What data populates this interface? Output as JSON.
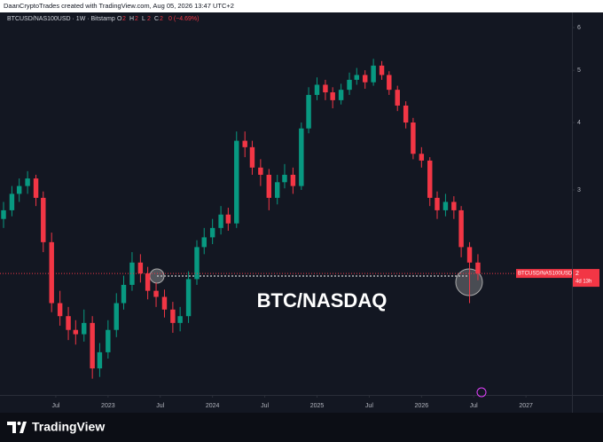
{
  "chart_data": {
    "type": "candlestick",
    "attribution": "DaanCryptoTrades created with TradingView.com, Aug 05, 2026 13:47 UTC+2",
    "legend_title": "BTCUSD/NAS100USD · 1W · Bitstamp",
    "ohlc_legend": [
      {
        "key": "O",
        "value": "2"
      },
      {
        "key": "H",
        "value": "2"
      },
      {
        "key": "L",
        "value": "2"
      },
      {
        "key": "C",
        "value": "2"
      }
    ],
    "change": "0 (−4.69%)",
    "annotation": "BTC/NASDAQ",
    "price_label": {
      "symbol": "BTCUSD/NAS100USD",
      "price": "2",
      "countdown": "4d 13h"
    },
    "brand": "TradingView",
    "log_scale": true,
    "grid": false,
    "up_color": "#089981",
    "down_color": "#f23645",
    "last_value": 2.1,
    "x": [
      2022.0,
      2022.08,
      2022.15,
      2022.23,
      2022.31,
      2022.38,
      2022.46,
      2022.54,
      2022.62,
      2022.69,
      2022.77,
      2022.85,
      2022.92,
      2023.0,
      2023.08,
      2023.15,
      2023.23,
      2023.31,
      2023.38,
      2023.46,
      2023.54,
      2023.62,
      2023.69,
      2023.77,
      2023.85,
      2023.92,
      2024.0,
      2024.08,
      2024.15,
      2024.23,
      2024.31,
      2024.38,
      2024.46,
      2024.54,
      2024.62,
      2024.69,
      2024.77,
      2024.85,
      2024.92,
      2025.0,
      2025.08,
      2025.15,
      2025.23,
      2025.31,
      2025.38,
      2025.46,
      2025.54,
      2025.62,
      2025.69,
      2025.77,
      2025.85,
      2025.92,
      2026.0,
      2026.08,
      2026.15,
      2026.23,
      2026.31,
      2026.38,
      2026.46,
      2026.54
    ],
    "open": [
      2.65,
      2.75,
      2.95,
      3.05,
      3.15,
      2.9,
      2.4,
      1.85,
      1.75,
      1.65,
      1.62,
      1.7,
      1.4,
      1.5,
      1.65,
      1.85,
      2.0,
      2.2,
      2.1,
      1.95,
      1.9,
      1.8,
      1.7,
      1.75,
      2.05,
      2.35,
      2.45,
      2.55,
      2.7,
      2.6,
      3.7,
      3.6,
      3.3,
      3.2,
      2.9,
      3.1,
      3.2,
      3.05,
      3.9,
      4.5,
      4.7,
      4.55,
      4.4,
      4.6,
      4.8,
      4.9,
      4.75,
      5.1,
      4.9,
      4.6,
      4.3,
      4.0,
      3.5,
      3.4,
      2.9,
      2.75,
      2.85,
      2.75,
      2.35,
      2.2
    ],
    "high": [
      2.85,
      3.05,
      3.15,
      3.25,
      3.2,
      2.98,
      2.5,
      1.95,
      1.82,
      1.72,
      1.8,
      1.75,
      1.56,
      1.72,
      1.93,
      2.08,
      2.3,
      2.28,
      2.16,
      2.02,
      1.96,
      1.86,
      1.82,
      2.12,
      2.42,
      2.55,
      2.65,
      2.8,
      2.78,
      3.85,
      3.85,
      3.7,
      3.42,
      3.28,
      3.2,
      3.35,
      3.3,
      4.0,
      4.65,
      4.85,
      4.8,
      4.65,
      4.72,
      4.95,
      5.05,
      5.0,
      5.25,
      5.2,
      4.98,
      4.68,
      4.38,
      4.08,
      3.6,
      3.45,
      2.98,
      2.95,
      2.92,
      2.8,
      2.4,
      2.28
    ],
    "low": [
      2.55,
      2.68,
      2.85,
      2.95,
      2.8,
      2.3,
      1.78,
      1.68,
      1.58,
      1.55,
      1.57,
      1.34,
      1.35,
      1.46,
      1.6,
      1.8,
      1.95,
      2.02,
      1.88,
      1.82,
      1.74,
      1.63,
      1.64,
      1.7,
      2.0,
      2.28,
      2.38,
      2.48,
      2.52,
      2.55,
      3.45,
      3.2,
      3.05,
      2.75,
      2.82,
      3.02,
      2.95,
      3.0,
      3.82,
      4.4,
      4.4,
      4.25,
      4.32,
      4.5,
      4.7,
      4.62,
      4.68,
      4.8,
      4.5,
      4.2,
      3.9,
      3.42,
      3.3,
      2.8,
      2.65,
      2.68,
      2.65,
      2.25,
      1.85,
      2.04
    ],
    "close": [
      2.75,
      2.95,
      3.05,
      3.15,
      2.9,
      2.4,
      1.85,
      1.75,
      1.65,
      1.62,
      1.7,
      1.4,
      1.5,
      1.65,
      1.85,
      2.0,
      2.2,
      2.1,
      1.95,
      1.9,
      1.8,
      1.7,
      1.75,
      2.05,
      2.35,
      2.45,
      2.55,
      2.7,
      2.6,
      3.7,
      3.6,
      3.3,
      3.2,
      2.9,
      3.1,
      3.2,
      3.05,
      3.9,
      4.5,
      4.7,
      4.55,
      4.4,
      4.6,
      4.8,
      4.9,
      4.75,
      5.1,
      4.9,
      4.6,
      4.3,
      4.0,
      3.5,
      3.4,
      2.9,
      2.75,
      2.85,
      2.75,
      2.35,
      2.2,
      2.1
    ],
    "xlim": [
      2021.966,
      2027.44
    ],
    "xticks": [
      {
        "value": 2022.5,
        "label": "Jul"
      },
      2023,
      {
        "value": 2023.5,
        "label": "Jul"
      },
      2024,
      {
        "value": 2024.5,
        "label": "Jul"
      },
      2025,
      {
        "value": 2025.5,
        "label": "Jul"
      },
      2026,
      {
        "value": 2026.5,
        "label": "Jul"
      },
      2027
    ],
    "ylim": [
      1.25,
      6.4
    ],
    "yticks": [
      2,
      3,
      4,
      5,
      6
    ]
  }
}
